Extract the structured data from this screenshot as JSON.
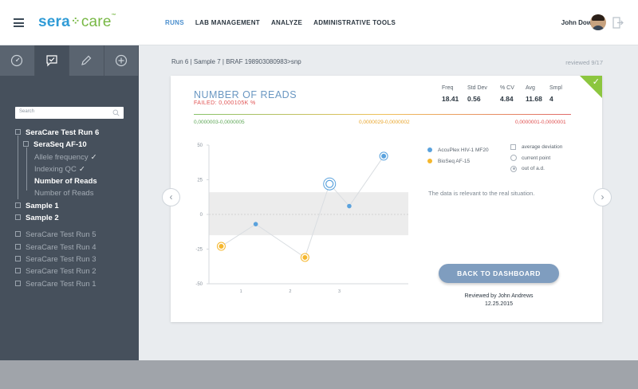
{
  "header": {
    "logo_part1": "sera",
    "logo_part2": "care",
    "logo_tm": "™",
    "nav": [
      "RUNS",
      "LAB MANAGEMENT",
      "ANALYZE",
      "ADMINISTRATIVE TOOLS"
    ],
    "user_name": "John Dow"
  },
  "sidebar": {
    "tabs": [
      "dashboard-icon",
      "check-icon",
      "pencil-icon",
      "plus-icon"
    ],
    "search_placeholder": "Search",
    "tree": [
      {
        "label": "SeraCare Test Run 6",
        "level": 0,
        "style": "bold",
        "box": true
      },
      {
        "label": "SeraSeq AF-10",
        "level": 1,
        "style": "bold",
        "box": true
      },
      {
        "label": "Allele frequency",
        "level": 2,
        "style": "dim",
        "check": true
      },
      {
        "label": "Indexing QC",
        "level": 2,
        "style": "dim",
        "check": true
      },
      {
        "label": "Number of Reads",
        "level": 2,
        "style": "bold"
      },
      {
        "label": "Number of Reads",
        "level": 2,
        "style": "dim"
      },
      {
        "label": "Sample 1",
        "level": 0,
        "style": "bold",
        "box": true
      },
      {
        "label": "Sample 2",
        "level": 0,
        "style": "bold",
        "box": true
      },
      {
        "label": "SeraCare Test Run 5",
        "level": 0,
        "style": "dim",
        "box": true
      },
      {
        "label": "SeraCare Test Run 4",
        "level": 0,
        "style": "dim",
        "box": true
      },
      {
        "label": "SeraCare Test Run 3",
        "level": 0,
        "style": "dim",
        "box": true
      },
      {
        "label": "SeraCare Test Run 2",
        "level": 0,
        "style": "dim",
        "box": true
      },
      {
        "label": "SeraCare Test Run 1",
        "level": 0,
        "style": "dim",
        "box": true
      }
    ]
  },
  "main": {
    "breadcrumb": "Run 6 | Sample 7 | BRAF 198903080983>snp",
    "reviewed": "reviewed 9/17",
    "card": {
      "title": "NUMBER OF READS",
      "failed": "FAILED: 0,000105K %",
      "stats": [
        {
          "label": "Freq",
          "value": "18.41"
        },
        {
          "label": "Std Dev",
          "value": "0.56"
        },
        {
          "label": "% CV",
          "value": "4.84"
        },
        {
          "label": "Avg",
          "value": "11.68"
        },
        {
          "label": "Smpl",
          "value": "4"
        }
      ],
      "ranges": [
        "0,0000003-0,0000005",
        "0,0000029-0,0000002",
        "0,0000001-0,0000001"
      ],
      "legend": [
        {
          "label": "AccuPlex HIV-1 MF20",
          "color": "#5aa2dd"
        },
        {
          "label": "BioSeq AF-15",
          "color": "#f5b72d"
        }
      ],
      "options": [
        {
          "label": "average deviation",
          "kind": "checkbox"
        },
        {
          "label": "current point",
          "kind": "radio"
        },
        {
          "label": "out of a.d.",
          "kind": "radio-filled"
        }
      ],
      "note": "The data is relevant to the real situation.",
      "button": "BACK TO DASHBOARD",
      "reviewed_by": "Reviewed by John Andrews",
      "reviewed_date": "12.25.2015"
    }
  },
  "chart_data": {
    "type": "line",
    "x": [
      0.6,
      1.3,
      2.3,
      2.8,
      3.2,
      3.9
    ],
    "values": [
      -23,
      -7,
      -31,
      22,
      6,
      42
    ],
    "point_series": [
      "BioSeq AF-15",
      "AccuPlex HIV-1 MF20",
      "BioSeq AF-15",
      "AccuPlex HIV-1 MF20",
      "AccuPlex HIV-1 MF20",
      "AccuPlex HIV-1 MF20"
    ],
    "point_style": [
      "ring",
      "dot",
      "ring",
      "current",
      "dot",
      "ring"
    ],
    "band": [
      -15,
      16
    ],
    "yticks": [
      50,
      25,
      0,
      -25,
      -50
    ],
    "xticks": [
      1,
      2,
      3
    ],
    "ylim": [
      -50,
      50
    ],
    "xlim": [
      0.35,
      4.4
    ],
    "colors": {
      "AccuPlex HIV-1 MF20": "#5aa2dd",
      "BioSeq AF-15": "#f5b72d"
    }
  }
}
